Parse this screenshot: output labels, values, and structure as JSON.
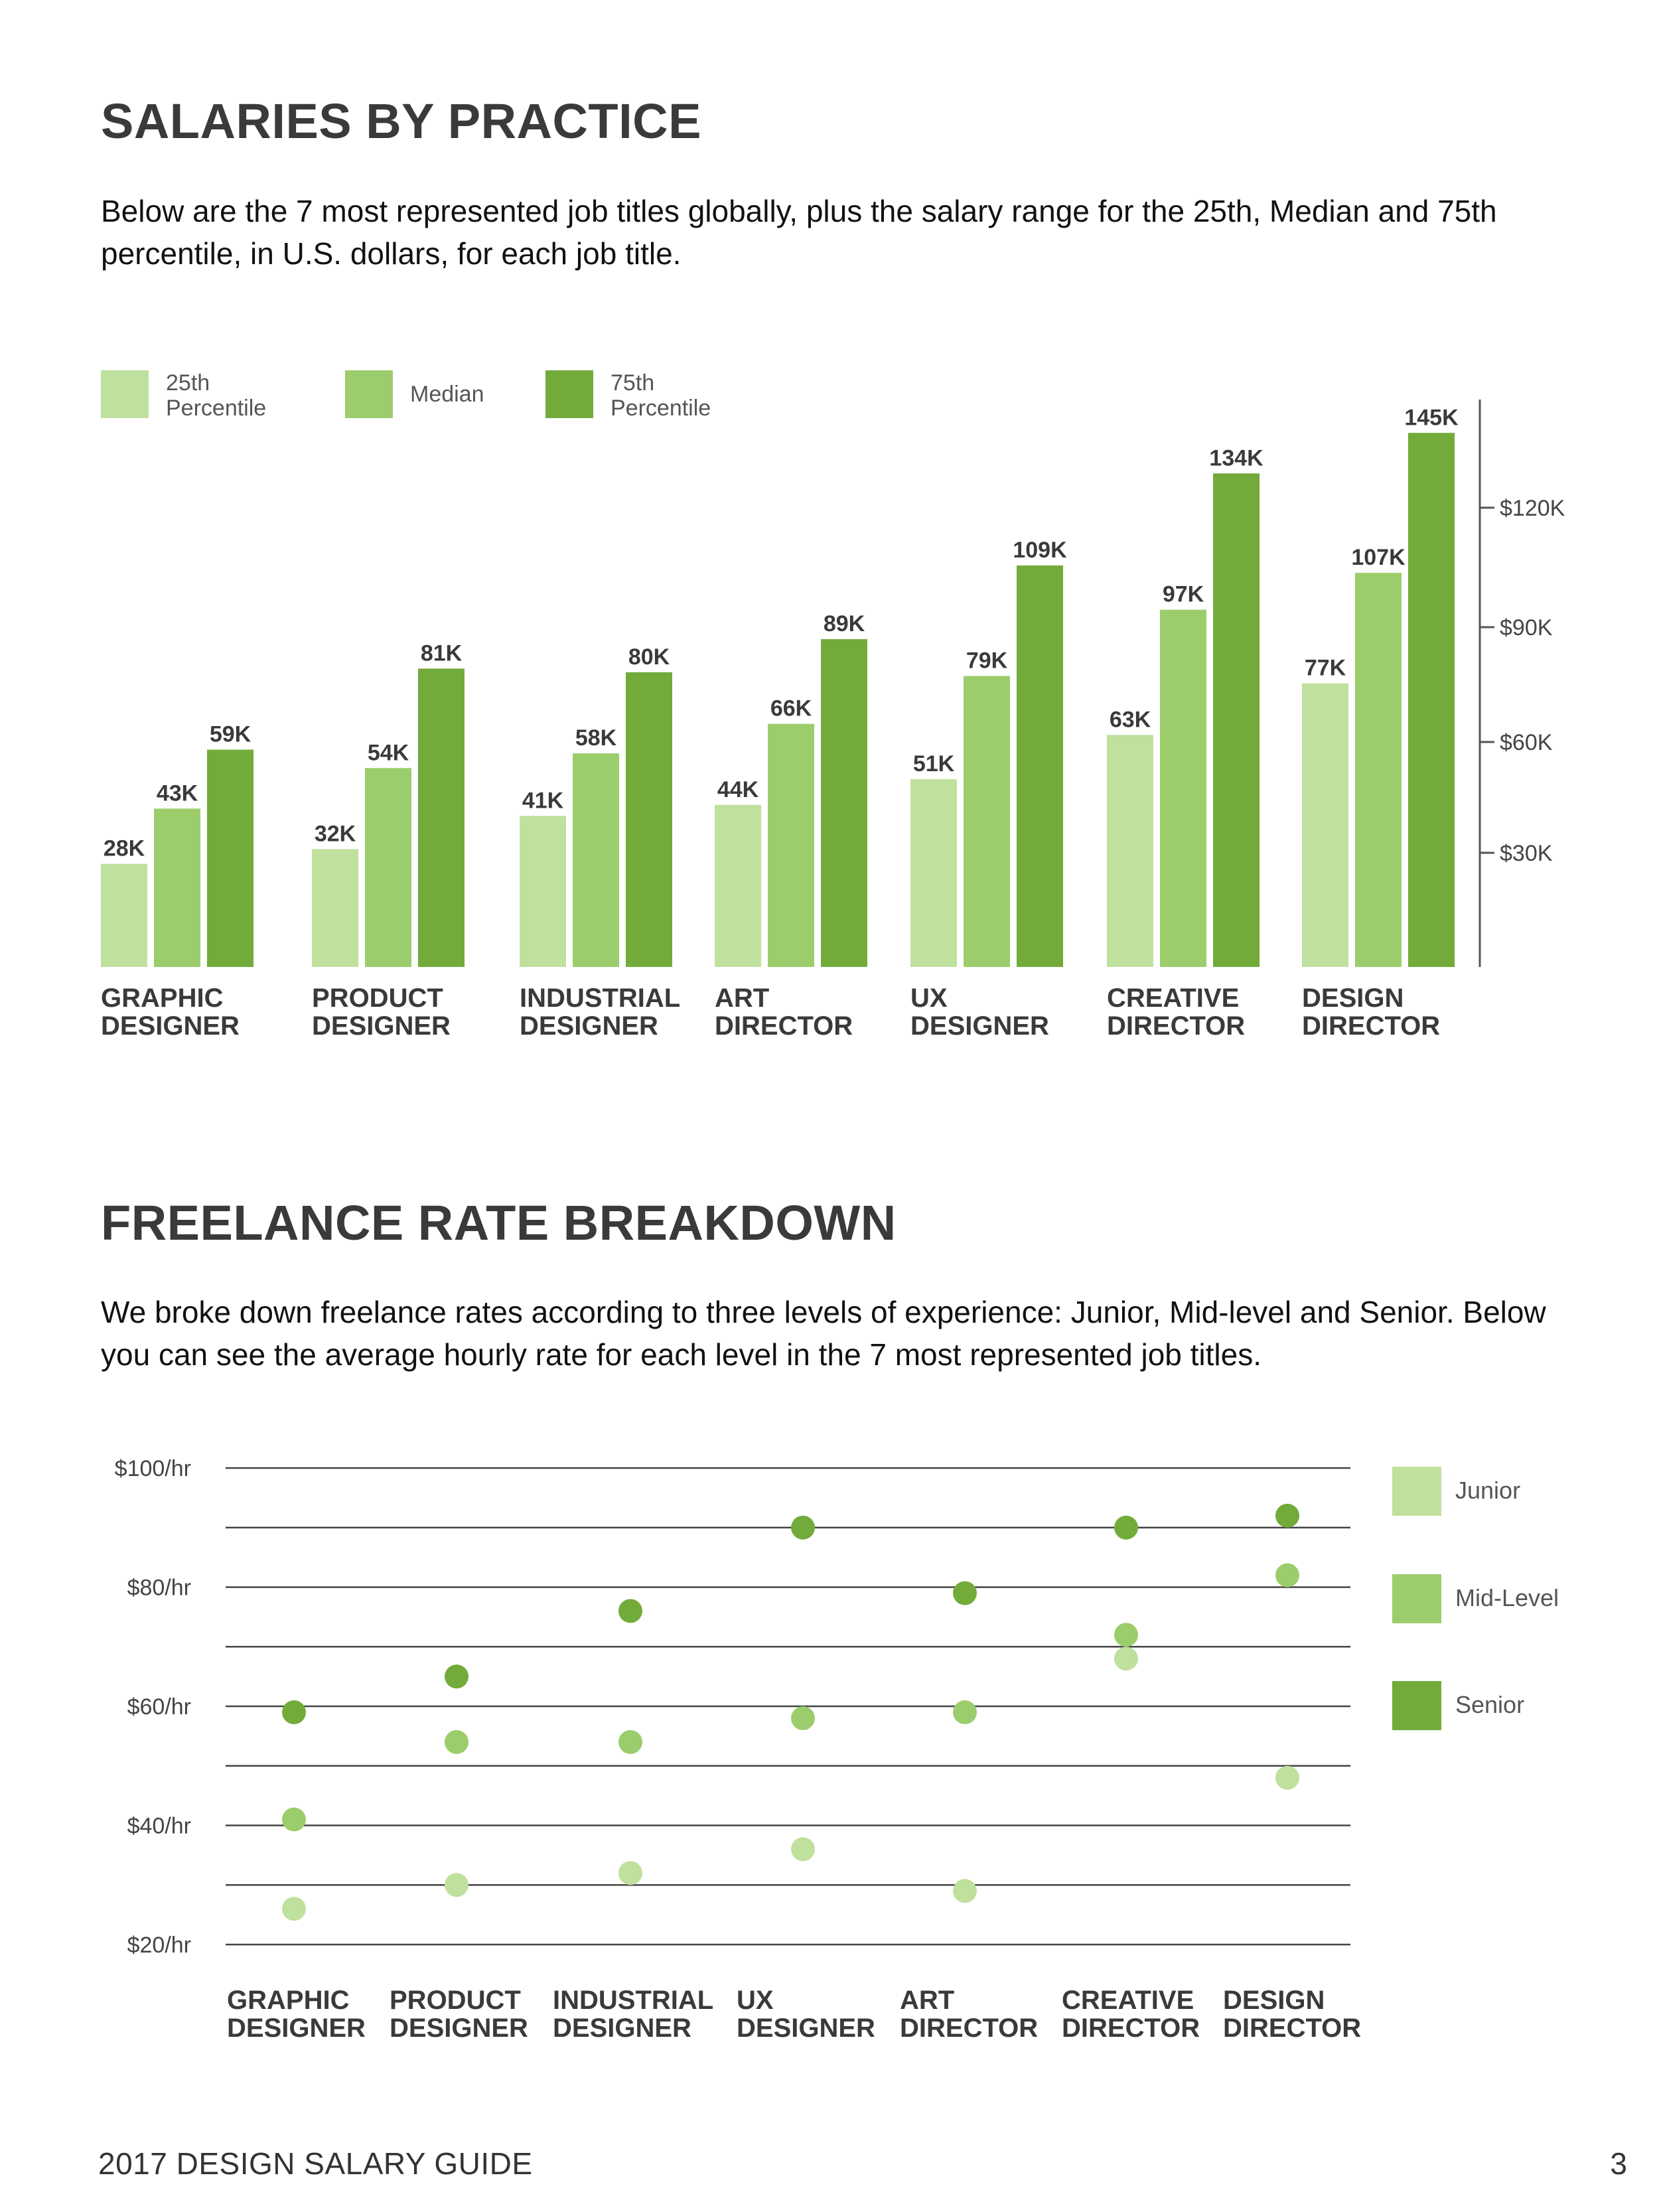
{
  "section1": {
    "title": "SALARIES BY PRACTICE",
    "intro": "Below are the 7 most represented job titles globally, plus the salary range for the 25th, Median and 75th percentile, in U.S. dollars, for each job title."
  },
  "section2": {
    "title": "FREELANCE RATE BREAKDOWN",
    "intro": "We broke down freelance rates according to three levels of experience: Junior, Mid-level and Senior. Below you can see the average hourly rate for each level in the 7 most represented job titles."
  },
  "footer": {
    "guide_title": "2017 DESIGN SALARY GUIDE",
    "page_number": "3"
  },
  "colors": {
    "p25": "#c0e09e",
    "median": "#9ccd6c",
    "p75": "#72ab3a",
    "text": "#3a3a3a",
    "grid": "#444444"
  },
  "chart_data": [
    {
      "type": "bar",
      "title": "SALARIES BY PRACTICE",
      "categories": [
        [
          "GRAPHIC",
          "DESIGNER"
        ],
        [
          "PRODUCT",
          "DESIGNER"
        ],
        [
          "INDUSTRIAL",
          "DESIGNER"
        ],
        [
          "ART",
          "DIRECTOR"
        ],
        [
          "UX",
          "DESIGNER"
        ],
        [
          "CREATIVE",
          "DIRECTOR"
        ],
        [
          "DESIGN",
          "DIRECTOR"
        ]
      ],
      "series": [
        {
          "name": "25th Percentile",
          "legend_lines": [
            "25th",
            "Percentile"
          ],
          "values": [
            28,
            32,
            41,
            44,
            51,
            63,
            77
          ],
          "labels": [
            "28K",
            "32K",
            "41K",
            "44K",
            "51K",
            "63K",
            "77K"
          ]
        },
        {
          "name": "Median",
          "legend_lines": [
            "Median"
          ],
          "values": [
            43,
            54,
            58,
            66,
            79,
            97,
            107
          ],
          "labels": [
            "43K",
            "54K",
            "58K",
            "66K",
            "79K",
            "97K",
            "107K"
          ]
        },
        {
          "name": "75th Percentile",
          "legend_lines": [
            "75th",
            "Percentile"
          ],
          "values": [
            59,
            81,
            80,
            89,
            109,
            134,
            145
          ],
          "labels": [
            "59K",
            "81K",
            "80K",
            "89K",
            "109K",
            "134K",
            "145K"
          ]
        }
      ],
      "y_ticks": [
        30,
        60,
        90,
        120
      ],
      "y_tick_labels": [
        "$30K",
        "$60K",
        "$90K",
        "$120K"
      ],
      "ylim": [
        0,
        145
      ],
      "units": "thousands USD",
      "legend_position": "top-left"
    },
    {
      "type": "scatter",
      "title": "FREELANCE RATE BREAKDOWN",
      "categories": [
        [
          "GRAPHIC",
          "DESIGNER"
        ],
        [
          "PRODUCT",
          "DESIGNER"
        ],
        [
          "INDUSTRIAL",
          "DESIGNER"
        ],
        [
          "UX",
          "DESIGNER"
        ],
        [
          "ART",
          "DIRECTOR"
        ],
        [
          "CREATIVE",
          "DIRECTOR"
        ],
        [
          "DESIGN",
          "DIRECTOR"
        ]
      ],
      "series": [
        {
          "name": "Junior",
          "values": [
            26,
            30,
            32,
            36,
            29,
            68,
            48
          ]
        },
        {
          "name": "Mid-Level",
          "values": [
            41,
            54,
            54,
            58,
            59,
            72,
            82
          ]
        },
        {
          "name": "Senior",
          "values": [
            59,
            65,
            76,
            90,
            79,
            90,
            92
          ]
        }
      ],
      "y_ticks": [
        20,
        40,
        60,
        80,
        100
      ],
      "y_tick_labels": [
        "$20/hr",
        "$40/hr",
        "$60/hr",
        "$80/hr",
        "$100/hr"
      ],
      "gridlines": [
        30,
        50,
        70,
        90
      ],
      "ylim": [
        20,
        100
      ],
      "units": "USD per hour",
      "legend_position": "right"
    }
  ]
}
